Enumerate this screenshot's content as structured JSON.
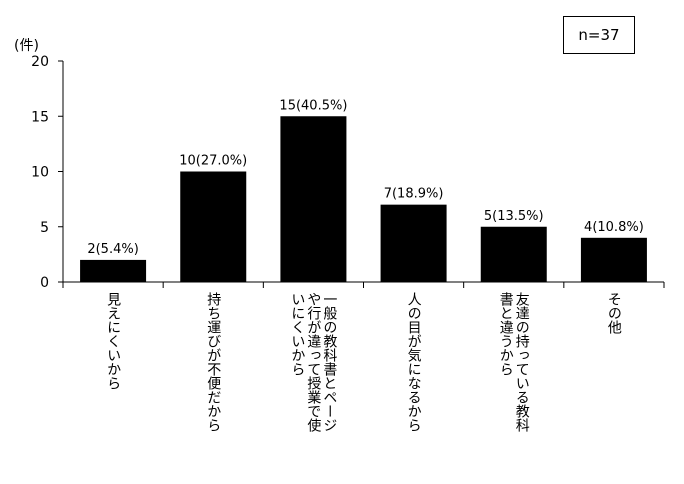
{
  "chart_data": {
    "type": "bar",
    "title": "",
    "xlabel": "",
    "ylabel": "(件)",
    "ylim": [
      0,
      20
    ],
    "yticks": [
      0,
      5,
      10,
      15,
      20
    ],
    "grid": false,
    "bar_color": "#000000",
    "sample_note": "n=37",
    "categories": [
      [
        "見えにくいから"
      ],
      [
        "持ち運びが不便だから"
      ],
      [
        "一般の教科書とページ",
        "や行が違って授業で使",
        "いにくいから"
      ],
      [
        "人の目が気になるから"
      ],
      [
        "友達の持っている教科",
        "書と違うから"
      ],
      [
        "その他"
      ]
    ],
    "values": [
      2,
      10,
      15,
      7,
      5,
      4
    ],
    "data_labels": [
      "2(5.4%)",
      "10(27.0%)",
      "15(40.5%)",
      "7(18.9%)",
      "5(13.5%)",
      "4(10.8%)"
    ]
  }
}
